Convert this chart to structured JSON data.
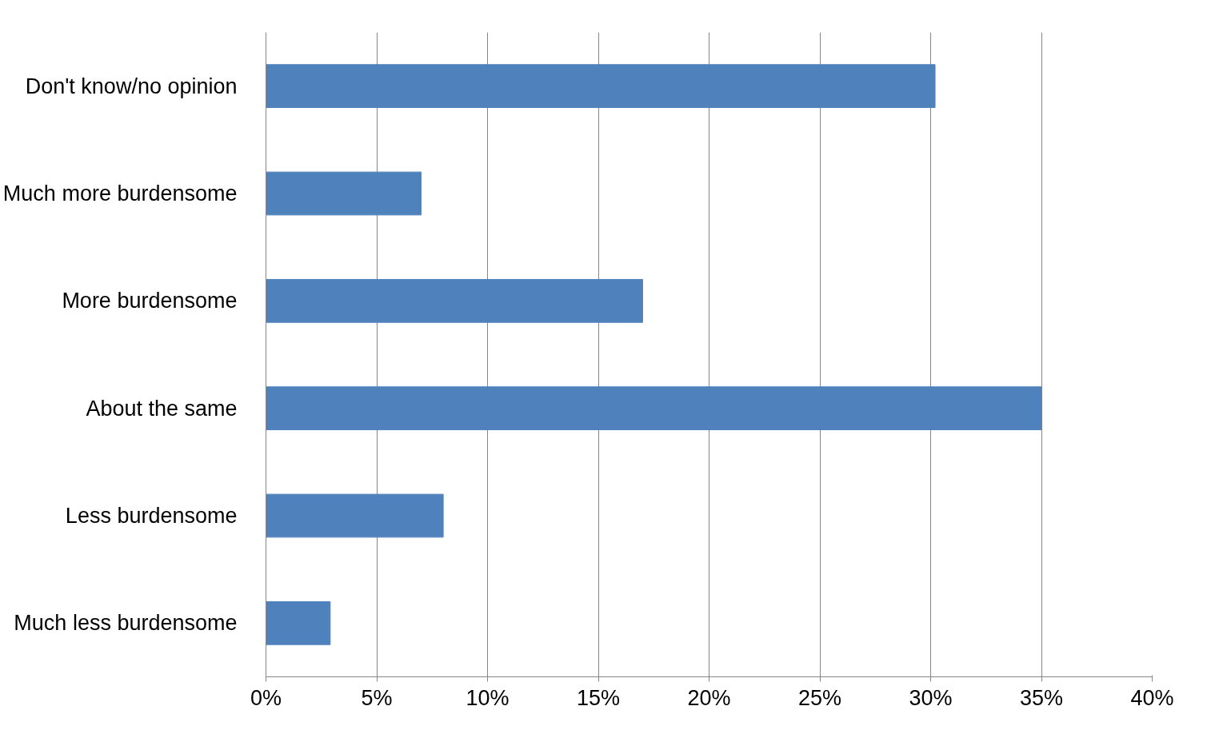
{
  "chart_data": {
    "type": "bar",
    "orientation": "horizontal",
    "categories": [
      "Don't know/no opinion",
      "Much more burdensome",
      "More burdensome",
      "About the same",
      "Less burdensome",
      "Much less burdensome"
    ],
    "values": [
      30.2,
      7,
      17,
      35,
      8,
      2.9
    ],
    "color": "#4f81bd",
    "xlim": [
      0,
      40
    ],
    "xticks": [
      {
        "value": 0,
        "label": "0%"
      },
      {
        "value": 5,
        "label": "5%"
      },
      {
        "value": 10,
        "label": "10%"
      },
      {
        "value": 15,
        "label": "15%"
      },
      {
        "value": 20,
        "label": "20%"
      },
      {
        "value": 25,
        "label": "25%"
      },
      {
        "value": 30,
        "label": "30%"
      },
      {
        "value": 35,
        "label": "35%"
      },
      {
        "value": 40,
        "label": "40%"
      }
    ],
    "grid": "x"
  }
}
